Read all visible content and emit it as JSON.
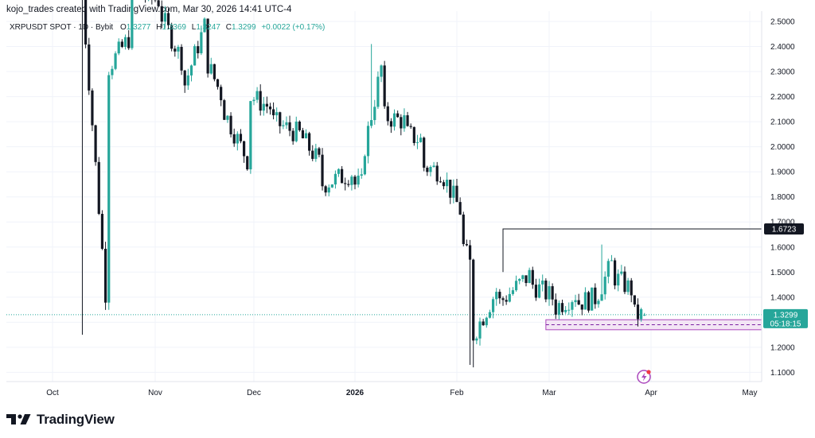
{
  "header": {
    "credit": "kojo_trades created with TradingView.com, Mar 30, 2026 14:41 UTC-4"
  },
  "legend": {
    "symbol": "XRPUSDT SPOT · 1D · Bybit",
    "o_label": "O",
    "o_value": "1.3277",
    "h_label": "H",
    "h_value": "1.3369",
    "l_label": "L",
    "l_value": "1.3247",
    "c_label": "C",
    "c_value": "1.3299",
    "change": "+0.0022 (+0.17%)"
  },
  "price_tags": {
    "level": "1.6723",
    "last": "1.3299",
    "countdown": "05:18:15"
  },
  "colors": {
    "up": "#26a69a",
    "down": "#131722",
    "support_zone": "#ce93d8",
    "text": "#131722",
    "grid": "#f0f3fa"
  },
  "icons": {
    "logo": "tradingview-logo-icon",
    "alert": "lightning-event-icon"
  },
  "footer": {
    "brand": "TradingView"
  },
  "chart_data": {
    "type": "candlestick",
    "symbol": "XRPUSDT",
    "y_axis": {
      "ticks": [
        "2.5000",
        "2.4000",
        "2.3000",
        "2.2000",
        "2.1000",
        "2.0000",
        "1.9000",
        "1.8000",
        "1.7000",
        "1.6000",
        "1.5000",
        "1.4000",
        "1.3000",
        "1.2000",
        "1.1000"
      ],
      "range": [
        1.075,
        2.51
      ],
      "side": "right"
    },
    "x_axis": {
      "labels": [
        "Oct",
        "Nov",
        "Dec",
        "2026",
        "Feb",
        "Mar",
        "Apr",
        "May"
      ]
    },
    "grid": true,
    "last_close": 1.3299,
    "horizontal_level": {
      "value": 1.6723,
      "from": "2026-02-15"
    },
    "support_zone": {
      "low": 1.27,
      "high": 1.31,
      "from": "2026-02-28"
    },
    "anchors": [
      [
        "2025-10-10",
        2.6,
        1.25
      ],
      [
        "2025-10-18",
        2.32,
        2.45
      ],
      [
        "2025-10-25",
        2.62,
        2.58
      ],
      [
        "2025-11-03",
        2.52,
        2.32
      ],
      [
        "2025-11-10",
        2.25,
        2.52
      ],
      [
        "2025-11-17",
        2.33,
        2.18
      ],
      [
        "2025-11-22",
        2.14,
        1.92
      ],
      [
        "2025-11-30",
        2.2,
        2.15
      ],
      [
        "2025-12-07",
        2.1,
        2.05
      ],
      [
        "2025-12-15",
        2.05,
        1.92
      ],
      [
        "2025-12-22",
        1.85,
        1.9
      ],
      [
        "2026-01-01",
        1.85,
        1.85
      ],
      [
        "2026-01-04",
        2.0,
        2.38
      ],
      [
        "2026-01-10",
        2.12,
        2.1
      ],
      [
        "2026-01-17",
        2.05,
        2.02
      ],
      [
        "2026-01-22",
        1.92,
        1.9
      ],
      [
        "2026-01-28",
        1.88,
        1.72
      ],
      [
        "2026-02-03",
        1.6,
        1.5
      ],
      [
        "2026-02-06",
        1.25,
        1.45
      ],
      [
        "2026-02-14",
        1.38,
        1.5
      ],
      [
        "2026-02-24",
        1.45,
        1.39
      ],
      [
        "2026-03-03",
        1.36,
        1.42
      ],
      [
        "2026-03-10",
        1.38,
        1.4
      ],
      [
        "2026-03-16",
        1.42,
        1.56
      ],
      [
        "2026-03-21",
        1.48,
        1.42
      ],
      [
        "2026-03-27",
        1.33,
        1.3277
      ]
    ]
  }
}
